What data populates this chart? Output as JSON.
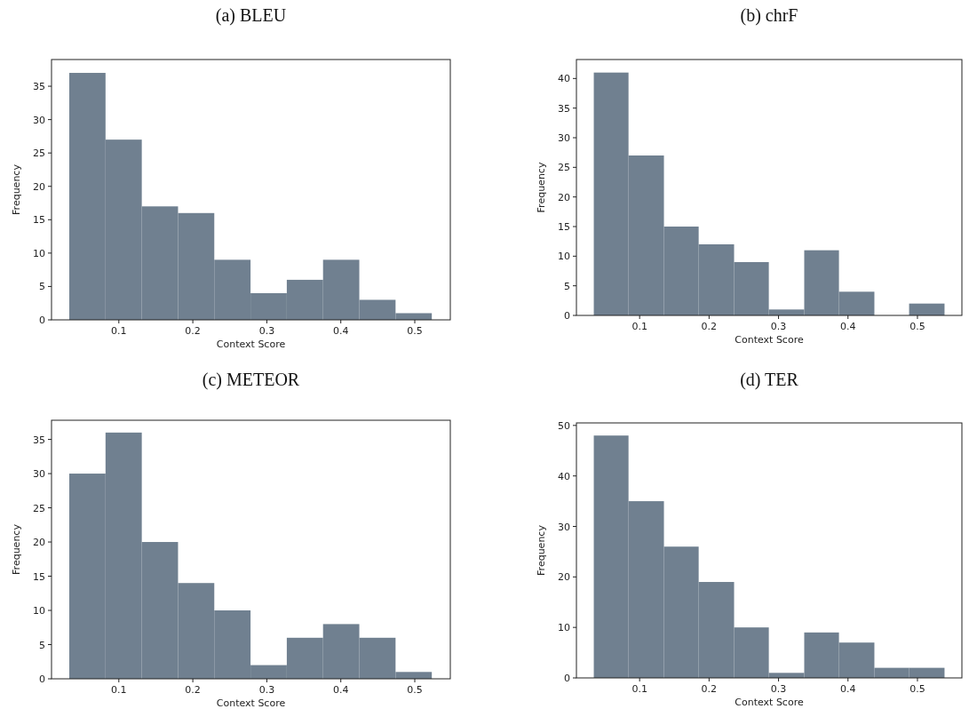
{
  "chart_data": [
    {
      "type": "histogram",
      "title": "(a) BLEU",
      "xlabel": "Context Score",
      "ylabel": "Frequency",
      "color": "#708090",
      "bins": [
        0.033,
        0.082,
        0.131,
        0.18,
        0.229,
        0.278,
        0.327,
        0.376,
        0.425,
        0.474,
        0.523
      ],
      "values": [
        37,
        27,
        17,
        16,
        9,
        4,
        6,
        9,
        3,
        1
      ],
      "xlim": [
        0.009,
        0.548
      ],
      "xticks": [
        0.1,
        0.2,
        0.3,
        0.4,
        0.5
      ],
      "ylim": [
        0,
        39
      ],
      "yticks": [
        0,
        5,
        10,
        15,
        20,
        25,
        30,
        35
      ],
      "grid": false
    },
    {
      "type": "histogram",
      "title": "(b) chrF",
      "xlabel": "Context Score",
      "ylabel": "Frequency",
      "color": "#708090",
      "bins": [
        0.034,
        0.084,
        0.135,
        0.185,
        0.236,
        0.286,
        0.337,
        0.387,
        0.438,
        0.488,
        0.539
      ],
      "values": [
        41,
        27,
        15,
        12,
        9,
        1,
        11,
        4,
        0,
        2
      ],
      "xlim": [
        0.009,
        0.564
      ],
      "xticks": [
        0.1,
        0.2,
        0.3,
        0.4,
        0.5
      ],
      "ylim": [
        0,
        43.2
      ],
      "yticks": [
        0,
        5,
        10,
        15,
        20,
        25,
        30,
        35,
        40
      ],
      "grid": false
    },
    {
      "type": "histogram",
      "title": "(c) METEOR",
      "xlabel": "Context Score",
      "ylabel": "Frequency",
      "color": "#708090",
      "bins": [
        0.033,
        0.082,
        0.131,
        0.18,
        0.229,
        0.278,
        0.327,
        0.376,
        0.425,
        0.474,
        0.523
      ],
      "values": [
        30,
        36,
        20,
        14,
        10,
        2,
        6,
        8,
        6,
        1
      ],
      "xlim": [
        0.009,
        0.548
      ],
      "xticks": [
        0.1,
        0.2,
        0.3,
        0.4,
        0.5
      ],
      "ylim": [
        0,
        37.8
      ],
      "yticks": [
        0,
        5,
        10,
        15,
        20,
        25,
        30,
        35
      ],
      "grid": false
    },
    {
      "type": "histogram",
      "title": "(d) TER",
      "xlabel": "Context Score",
      "ylabel": "Frequency",
      "color": "#708090",
      "bins": [
        0.034,
        0.084,
        0.135,
        0.185,
        0.236,
        0.286,
        0.337,
        0.387,
        0.438,
        0.488,
        0.539
      ],
      "values": [
        48,
        35,
        26,
        19,
        10,
        1,
        9,
        7,
        2,
        2
      ],
      "xlim": [
        0.009,
        0.564
      ],
      "xticks": [
        0.1,
        0.2,
        0.3,
        0.4,
        0.5
      ],
      "ylim": [
        0,
        50.5
      ],
      "yticks": [
        0,
        10,
        20,
        30,
        40,
        50
      ],
      "grid": false
    }
  ]
}
